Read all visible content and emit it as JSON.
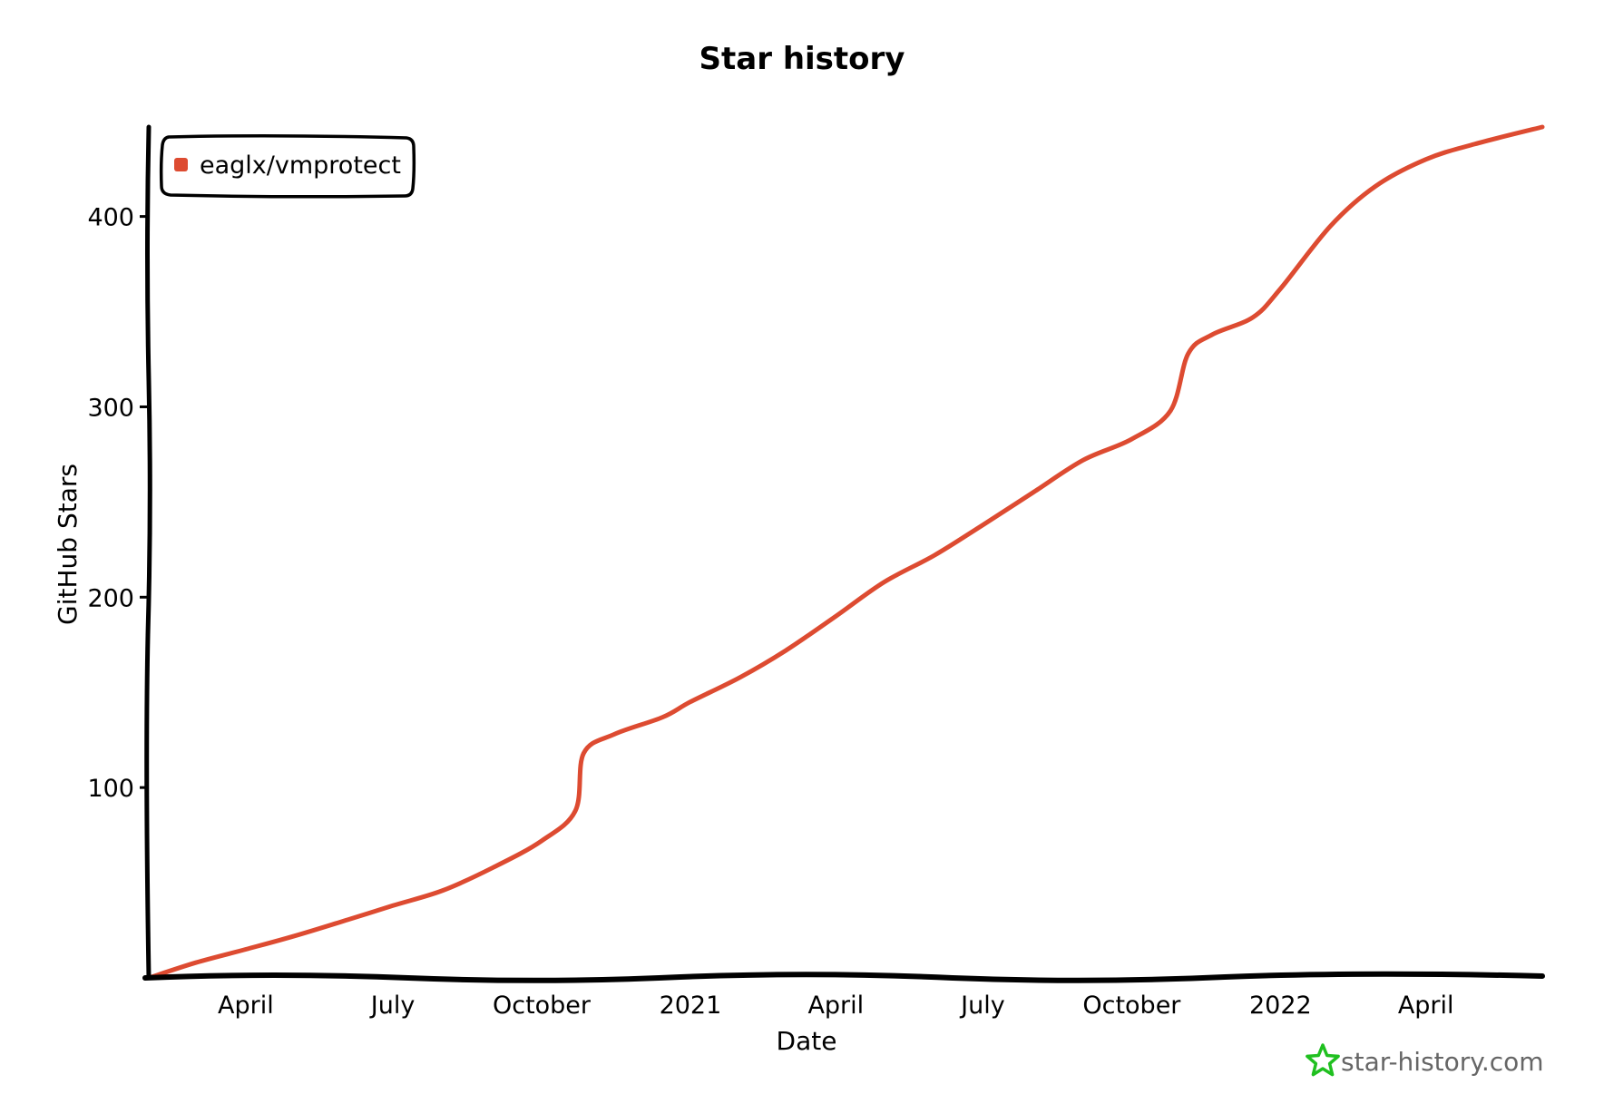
{
  "chart_data": {
    "type": "line",
    "title": "Star history",
    "xlabel": "Date",
    "ylabel": "GitHub Stars",
    "x_range": [
      "2020-02-01",
      "2022-06-12"
    ],
    "ylim": [
      0,
      447
    ],
    "y_ticks": [
      100,
      200,
      300,
      400
    ],
    "x_ticks": [
      {
        "date": "2020-04-01",
        "label": "April"
      },
      {
        "date": "2020-07-01",
        "label": "July"
      },
      {
        "date": "2020-10-01",
        "label": "October"
      },
      {
        "date": "2021-01-01",
        "label": "2021"
      },
      {
        "date": "2021-04-01",
        "label": "April"
      },
      {
        "date": "2021-07-01",
        "label": "July"
      },
      {
        "date": "2021-10-01",
        "label": "October"
      },
      {
        "date": "2022-01-01",
        "label": "2022"
      },
      {
        "date": "2022-04-01",
        "label": "April"
      }
    ],
    "grid": false,
    "legend_position": "top-left",
    "series": [
      {
        "name": "eaglx/vmprotect",
        "color": "#dd4b31",
        "points": [
          [
            "2020-02-01",
            0
          ],
          [
            "2020-03-01",
            8
          ],
          [
            "2020-04-01",
            15
          ],
          [
            "2020-05-01",
            22
          ],
          [
            "2020-06-01",
            30
          ],
          [
            "2020-07-01",
            38
          ],
          [
            "2020-08-01",
            46
          ],
          [
            "2020-09-01",
            58
          ],
          [
            "2020-10-01",
            72
          ],
          [
            "2020-10-22",
            88
          ],
          [
            "2020-10-27",
            118
          ],
          [
            "2020-11-15",
            128
          ],
          [
            "2020-12-15",
            137
          ],
          [
            "2021-01-01",
            145
          ],
          [
            "2021-02-01",
            158
          ],
          [
            "2021-03-01",
            172
          ],
          [
            "2021-04-01",
            190
          ],
          [
            "2021-05-01",
            208
          ],
          [
            "2021-06-01",
            222
          ],
          [
            "2021-07-01",
            238
          ],
          [
            "2021-08-01",
            255
          ],
          [
            "2021-09-01",
            272
          ],
          [
            "2021-10-01",
            283
          ],
          [
            "2021-10-25",
            298
          ],
          [
            "2021-11-05",
            328
          ],
          [
            "2021-11-20",
            338
          ],
          [
            "2021-12-15",
            347
          ],
          [
            "2022-01-01",
            362
          ],
          [
            "2022-02-01",
            395
          ],
          [
            "2022-03-01",
            416
          ],
          [
            "2022-04-01",
            430
          ],
          [
            "2022-05-01",
            438
          ],
          [
            "2022-06-12",
            447
          ]
        ]
      }
    ]
  },
  "watermark": {
    "text": "star-history.com",
    "icon": "star-icon",
    "icon_color": "#20c020"
  }
}
